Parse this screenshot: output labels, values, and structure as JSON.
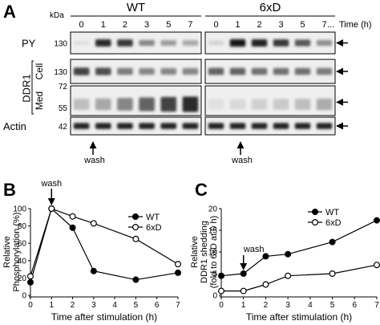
{
  "panel_a": {
    "letter": "A",
    "kda_label": "kDa",
    "groups": [
      {
        "name": "WT",
        "lanes": [
          "0",
          "1",
          "2",
          "3",
          "5",
          "7"
        ]
      },
      {
        "name": "6xD",
        "lanes": [
          "0",
          "1",
          "2",
          "3",
          "5",
          "7"
        ]
      }
    ],
    "time_label": "Time (h)",
    "ellipsis": "...",
    "ddr1_label": "DDR1",
    "wash_label": "wash",
    "rows": [
      {
        "label": "PY",
        "mw": [
          "130"
        ],
        "sub": "",
        "intensity": {
          "WT": [
            0.05,
            0.85,
            0.8,
            0.45,
            0.35,
            0.3
          ],
          "6xD": [
            0.1,
            0.95,
            0.9,
            0.8,
            0.65,
            0.4
          ]
        }
      },
      {
        "label": "",
        "mw": [
          "130"
        ],
        "sub": "Cell",
        "intensity": {
          "WT": [
            0.75,
            0.7,
            0.5,
            0.45,
            0.45,
            0.45
          ],
          "6xD": [
            0.6,
            0.6,
            0.55,
            0.55,
            0.55,
            0.5
          ]
        }
      },
      {
        "label": "",
        "mw": [
          "72",
          "55"
        ],
        "sub": "Med",
        "intensity": {
          "WT": [
            0.2,
            0.3,
            0.45,
            0.6,
            0.75,
            0.85
          ],
          "6xD": [
            0.05,
            0.08,
            0.12,
            0.15,
            0.2,
            0.28
          ]
        }
      },
      {
        "label": "Actin",
        "mw": [
          "42"
        ],
        "sub": "",
        "intensity": {
          "WT": [
            0.9,
            0.9,
            0.9,
            0.9,
            0.9,
            0.9
          ],
          "6xD": [
            0.9,
            0.9,
            0.9,
            0.9,
            0.9,
            0.9
          ]
        }
      }
    ]
  },
  "chart_data": [
    {
      "panel": "B",
      "type": "line",
      "ylabel": "Relative Phosphorylation (%)",
      "xlabel": "Time after stimulation (h)",
      "xlim": [
        0,
        7
      ],
      "ylim": [
        0,
        100
      ],
      "xticks": [
        "0",
        "1",
        "2",
        "3",
        "4",
        "5",
        "6",
        "7"
      ],
      "yticks": [
        "0",
        "20",
        "40",
        "60",
        "80",
        "100"
      ],
      "annotation": "wash",
      "annotation_x": 1,
      "legend_position": "top-right",
      "series": [
        {
          "name": "WT",
          "marker": "filled",
          "x": [
            0,
            1,
            2,
            3,
            5,
            7
          ],
          "y": [
            15,
            100,
            78,
            28,
            18,
            26
          ]
        },
        {
          "name": "6xD",
          "marker": "open",
          "x": [
            0,
            1,
            2,
            3,
            5,
            7
          ],
          "y": [
            22,
            100,
            91,
            83,
            65,
            36
          ]
        }
      ]
    },
    {
      "panel": "C",
      "type": "line",
      "ylabel": "Relative DDR1 shedding (fold to 6xD at 0 h)",
      "xlabel": "Time after stimulation (h)",
      "xlim": [
        0,
        7
      ],
      "ylim": [
        0,
        20
      ],
      "xticks": [
        "0",
        "1",
        "2",
        "3",
        "4",
        "5",
        "6",
        "7"
      ],
      "yticks": [
        "0",
        "5",
        "10",
        "15",
        "20"
      ],
      "annotation": "wash",
      "annotation_x": 1,
      "legend_position": "top-left",
      "series": [
        {
          "name": "WT",
          "marker": "filled",
          "x": [
            0,
            1,
            2,
            3,
            5,
            7
          ],
          "y": [
            4.5,
            5,
            9,
            9.5,
            12.3,
            17.3
          ]
        },
        {
          "name": "6xD",
          "marker": "open",
          "x": [
            0,
            1,
            2,
            3,
            5,
            7
          ],
          "y": [
            1,
            1,
            2.5,
            4.5,
            5,
            7
          ]
        }
      ]
    }
  ]
}
